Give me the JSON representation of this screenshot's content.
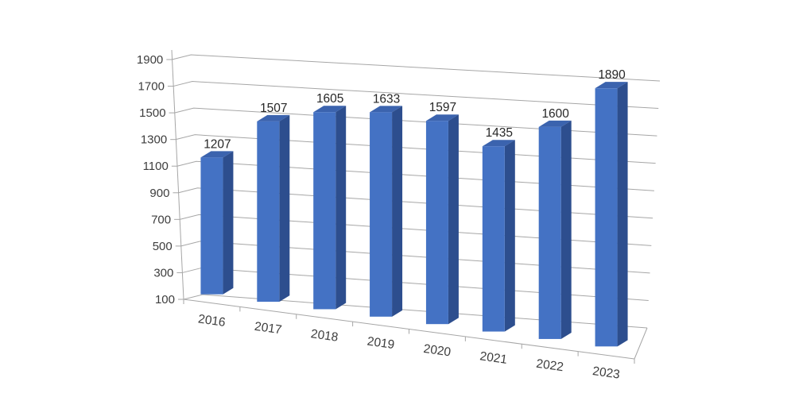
{
  "chart_data": {
    "type": "bar",
    "variant": "3d-column",
    "title": "",
    "categories": [
      "2016",
      "2017",
      "2018",
      "2019",
      "2020",
      "2021",
      "2022",
      "2023"
    ],
    "series": [
      {
        "name": "",
        "values": [
          1207,
          1507,
          1605,
          1633,
          1597,
          1435,
          1600,
          1890
        ]
      }
    ],
    "data_labels_shown": true,
    "value_axis": {
      "min": 100,
      "max": 1900,
      "step": 200,
      "tick_labels": [
        "100",
        "300",
        "500",
        "700",
        "900",
        "1100",
        "1300",
        "1500",
        "1700",
        "1900"
      ]
    },
    "category_axis": {
      "tick_labels": [
        "2016",
        "2017",
        "2018",
        "2019",
        "2020",
        "2021",
        "2022",
        "2023"
      ]
    },
    "grid": true,
    "legend": "none",
    "colors": {
      "bar_front": "#4472C4",
      "bar_top": "#3B63AE",
      "bar_side": "#2D4E8E",
      "gridline": "#A6A6A6",
      "axis_line": "#A6A6A6",
      "axis_text": "#3d3d3d",
      "data_label_text": "#262626",
      "background": "#ffffff"
    }
  }
}
